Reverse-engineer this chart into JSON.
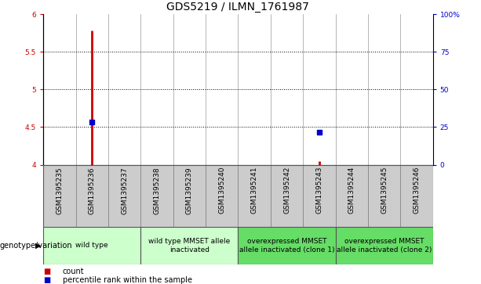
{
  "title": "GDS5219 / ILMN_1761987",
  "samples": [
    "GSM1395235",
    "GSM1395236",
    "GSM1395237",
    "GSM1395238",
    "GSM1395239",
    "GSM1395240",
    "GSM1395241",
    "GSM1395242",
    "GSM1395243",
    "GSM1395244",
    "GSM1395245",
    "GSM1395246"
  ],
  "count_values": [
    null,
    5.78,
    null,
    null,
    null,
    null,
    null,
    null,
    4.05,
    null,
    null,
    null
  ],
  "percentile_values": [
    null,
    4.57,
    null,
    null,
    null,
    null,
    null,
    null,
    4.43,
    null,
    null,
    null
  ],
  "ylim": [
    4.0,
    6.0
  ],
  "yticks": [
    4.0,
    4.5,
    5.0,
    5.5,
    6.0
  ],
  "right_yticks": [
    0,
    25,
    50,
    75,
    100
  ],
  "right_yticklabels": [
    "0",
    "25",
    "50",
    "75",
    "100%"
  ],
  "dotted_lines": [
    4.5,
    5.0,
    5.5
  ],
  "count_color": "#cc0000",
  "percentile_color": "#0000cc",
  "groups": [
    {
      "label": "wild type",
      "start": 0,
      "end": 2,
      "color": "#ccffcc"
    },
    {
      "label": "wild type MMSET allele\ninactivated",
      "start": 3,
      "end": 5,
      "color": "#ccffcc"
    },
    {
      "label": "overexpressed MMSET\nallele inactivated (clone 1)",
      "start": 6,
      "end": 8,
      "color": "#66dd66"
    },
    {
      "label": "overexpressed MMSET\nallele inactivated (clone 2)",
      "start": 9,
      "end": 11,
      "color": "#66dd66"
    }
  ],
  "genotype_label": "genotype/variation",
  "legend_items": [
    {
      "label": "count",
      "color": "#cc0000"
    },
    {
      "label": "percentile rank within the sample",
      "color": "#0000cc"
    }
  ],
  "cell_bg_color": "#cccccc",
  "title_fontsize": 10,
  "tick_fontsize": 6.5,
  "group_fontsize": 6.5
}
